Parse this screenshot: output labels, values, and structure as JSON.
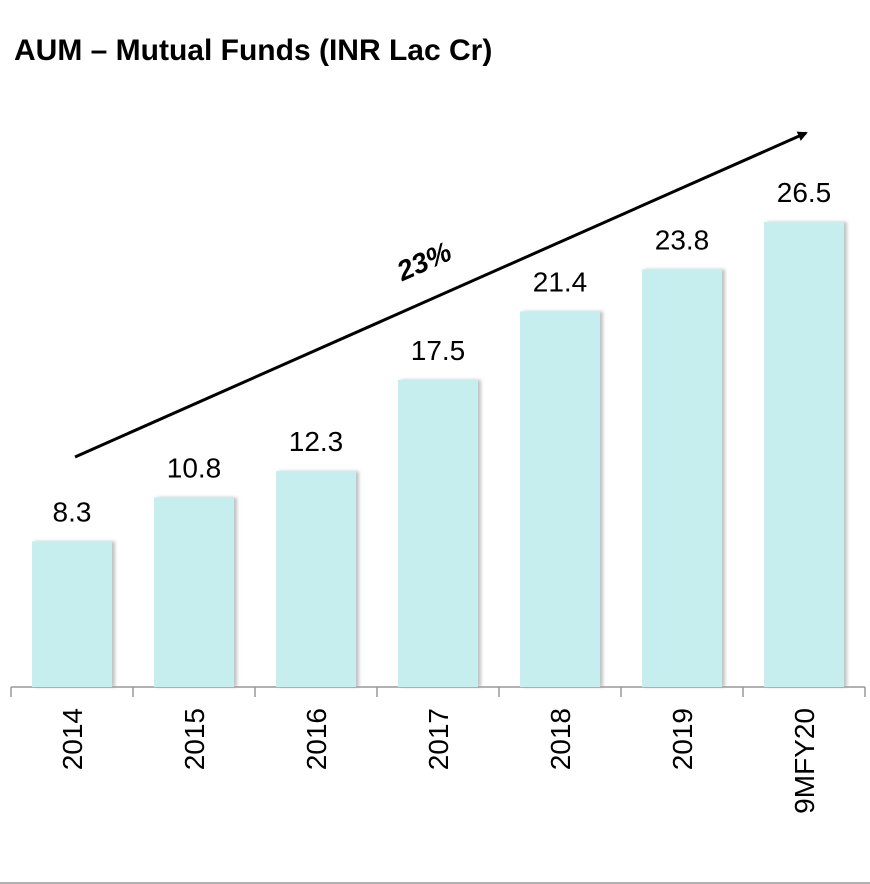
{
  "chart_data": {
    "type": "bar",
    "title": "AUM – Mutual Funds (INR Lac Cr)",
    "categories": [
      "2014",
      "2015",
      "2016",
      "2017",
      "2018",
      "2019",
      "9MFY20"
    ],
    "values": [
      8.3,
      10.8,
      12.3,
      17.5,
      21.4,
      23.8,
      26.5
    ],
    "color": "#c6eeee",
    "annotation": "23%"
  }
}
